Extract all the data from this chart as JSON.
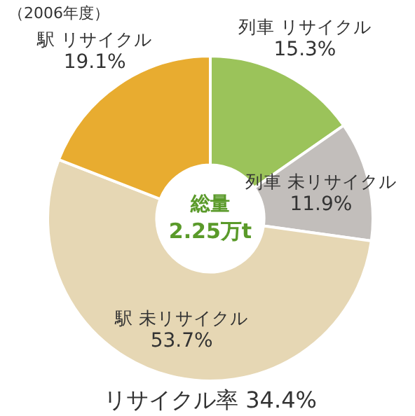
{
  "chart_data": {
    "type": "donut",
    "categories": [
      "列車 リサイクル",
      "列車 未リサイクル",
      "駅 未リサイクル",
      "駅 リサイクル"
    ],
    "values": [
      15.3,
      11.9,
      53.7,
      19.1
    ],
    "value_labels": [
      "15.3%",
      "11.9%",
      "53.7%",
      "19.1%"
    ],
    "colors": [
      "#9bc35a",
      "#c2bebb",
      "#e6d7b4",
      "#e8ac30"
    ],
    "annotations": [
      "（2006年度）",
      "総量",
      "2.25万t",
      "リサイクル率 34.4%"
    ],
    "legend": false
  }
}
